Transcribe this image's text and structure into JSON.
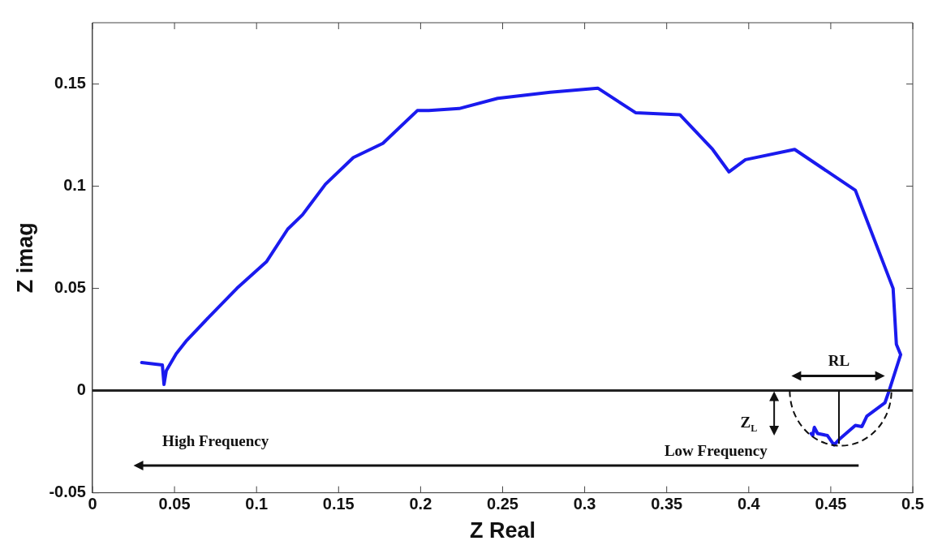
{
  "chart_data": {
    "type": "line",
    "xlabel": "Z Real",
    "ylabel": "Z imag",
    "xlim": [
      0,
      0.5
    ],
    "ylim": [
      -0.05,
      0.18
    ],
    "xticks": [
      0,
      0.05,
      0.1,
      0.15,
      0.2,
      0.25,
      0.3,
      0.35,
      0.4,
      0.45,
      0.5
    ],
    "yticks": [
      -0.05,
      0,
      0.05,
      0.1,
      0.15
    ],
    "grid": false,
    "legend": false,
    "marker": "none",
    "line_style": "solid",
    "series": [
      {
        "color": "#1a1aee",
        "x": [
          0.03,
          0.0426,
          0.0436,
          0.045,
          0.051,
          0.0575,
          0.071,
          0.088,
          0.106,
          0.119,
          0.128,
          0.142,
          0.159,
          0.177,
          0.198,
          0.205,
          0.2235,
          0.247,
          0.279,
          0.308,
          0.331,
          0.358,
          0.378,
          0.388,
          0.398,
          0.428,
          0.465,
          0.488,
          0.49,
          0.4926,
          0.4856,
          0.483,
          0.472,
          0.469,
          0.465,
          0.455,
          0.452,
          0.448,
          0.442,
          0.44,
          0.439,
          0.438
        ],
        "values": [
          0.0137,
          0.0125,
          0.003,
          0.0098,
          0.018,
          0.0246,
          0.036,
          0.05,
          0.063,
          0.079,
          0.086,
          0.101,
          0.114,
          0.121,
          0.137,
          0.137,
          0.138,
          0.143,
          0.146,
          0.148,
          0.136,
          0.135,
          0.118,
          0.107,
          0.113,
          0.118,
          0.098,
          0.05,
          0.0227,
          0.0176,
          0,
          -0.006,
          -0.0125,
          -0.0176,
          -0.017,
          -0.024,
          -0.0266,
          -0.022,
          -0.021,
          -0.018,
          -0.022,
          -0.021
        ]
      }
    ],
    "ref_lines": [
      {
        "axis": "y",
        "value": 0,
        "color": "#222222"
      }
    ],
    "annotations": [
      "RL",
      "Z$_{L}$",
      "High Frequency",
      "Low Frequency"
    ]
  }
}
